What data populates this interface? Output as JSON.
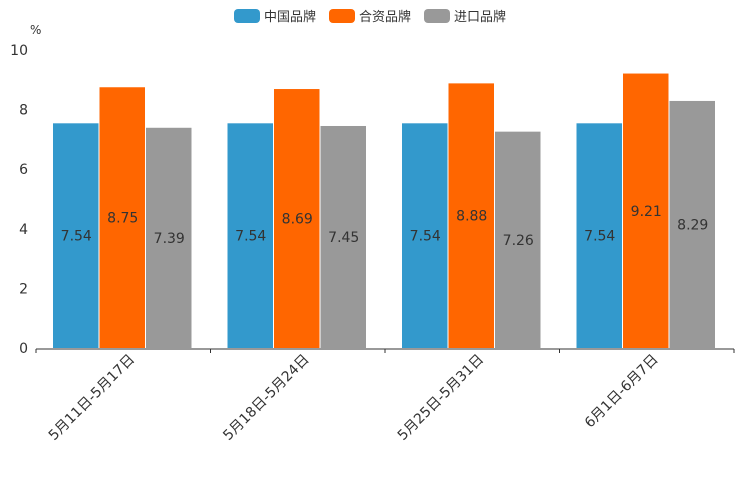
{
  "chart_data": {
    "type": "bar",
    "title": "",
    "xlabel": "",
    "ylabel": "%",
    "ylim": [
      0,
      10
    ],
    "yticks": [
      0,
      2,
      4,
      6,
      8,
      10
    ],
    "categories": [
      "5月11日-5月17日",
      "5月18日-5月24日",
      "5月25日-5月31日",
      "6月1日-6月7日"
    ],
    "series": [
      {
        "name": "中国品牌",
        "color": "#3399cc",
        "values": [
          7.54,
          7.54,
          7.54,
          7.54
        ]
      },
      {
        "name": "合资品牌",
        "color": "#ff6600",
        "values": [
          8.75,
          8.69,
          8.88,
          9.21
        ]
      },
      {
        "name": "进口品牌",
        "color": "#999999",
        "values": [
          7.39,
          7.45,
          7.26,
          8.29
        ]
      }
    ],
    "legend_position": "top-center",
    "grid": false
  }
}
